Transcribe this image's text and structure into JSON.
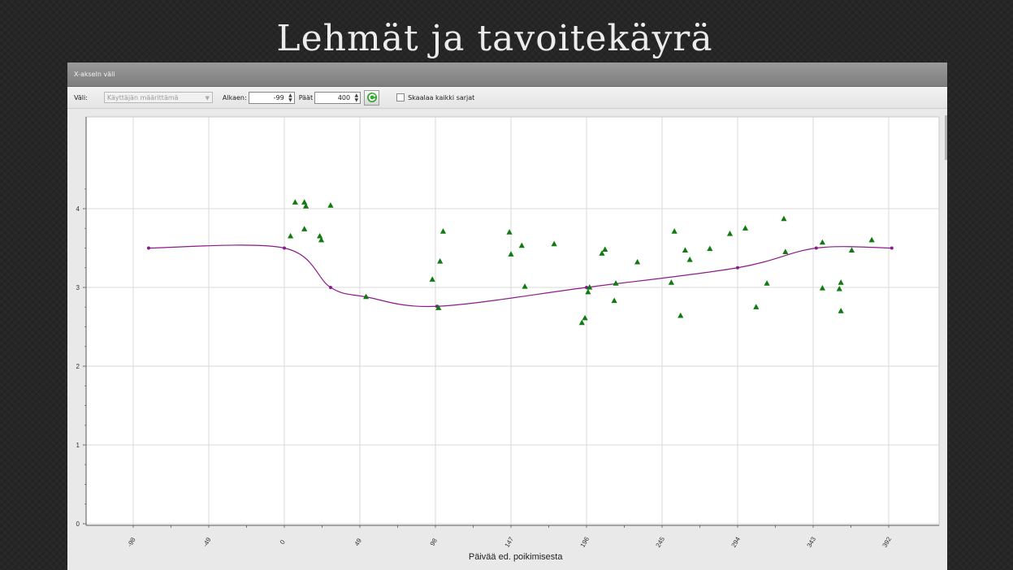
{
  "slide": {
    "title": "Lehmät ja tavoitekäyrä"
  },
  "window": {
    "title": "X-akseln väli"
  },
  "toolbar": {
    "vali_label": "Väli:",
    "vali_value": "Käyttäjän määrittämä",
    "alkaen_label": "Alkaen:",
    "alkaen_value": "-99",
    "paat_label": "Päät",
    "paat_value": "400",
    "refresh_icon": "refresh-icon",
    "scale_checkbox_checked": false,
    "scale_label": "Skaalaa kaikki sarjat"
  },
  "colors": {
    "curve": "#8b1a8b",
    "triangle": "#0f7a0f",
    "plot_bg": "#ffffff",
    "grid": "#dadada"
  },
  "chart_data": {
    "type": "scatter",
    "xlabel": "Päivää ed. poikimisesta",
    "ylabel": "",
    "xlim": [
      -99,
      400
    ],
    "ylim": [
      0,
      4.4
    ],
    "x_ticks": [
      -98,
      -49,
      0,
      49,
      98,
      147,
      196,
      245,
      294,
      343,
      392
    ],
    "y_ticks": [
      0,
      1,
      2,
      3,
      4
    ],
    "grid": true,
    "series": [
      {
        "marker": "circle-line",
        "points": [
          [
            -88,
            3.5
          ],
          [
            0,
            3.5
          ],
          [
            30,
            3.0
          ],
          [
            53,
            2.88
          ],
          [
            99,
            2.76
          ],
          [
            196,
            3.0
          ],
          [
            294,
            3.25
          ],
          [
            345,
            3.5
          ],
          [
            394,
            3.5
          ]
        ]
      },
      {
        "marker": "triangle",
        "points": [
          [
            4,
            3.65
          ],
          [
            7,
            4.08
          ],
          [
            13,
            3.74
          ],
          [
            13,
            4.08
          ],
          [
            14,
            4.03
          ],
          [
            23,
            3.65
          ],
          [
            24,
            3.6
          ],
          [
            30,
            4.04
          ],
          [
            53,
            2.88
          ],
          [
            96,
            3.1
          ],
          [
            101,
            3.33
          ],
          [
            103,
            3.71
          ],
          [
            100,
            2.74
          ],
          [
            146,
            3.7
          ],
          [
            147,
            3.42
          ],
          [
            154,
            3.53
          ],
          [
            156,
            3.01
          ],
          [
            175,
            3.55
          ],
          [
            193,
            2.55
          ],
          [
            195,
            2.61
          ],
          [
            197,
            2.94
          ],
          [
            198,
            3.0
          ],
          [
            206,
            3.43
          ],
          [
            208,
            3.48
          ],
          [
            214,
            2.83
          ],
          [
            215,
            3.05
          ],
          [
            229,
            3.32
          ],
          [
            251,
            3.06
          ],
          [
            253,
            3.71
          ],
          [
            257,
            2.64
          ],
          [
            260,
            3.47
          ],
          [
            263,
            3.35
          ],
          [
            276,
            3.49
          ],
          [
            289,
            3.68
          ],
          [
            299,
            3.75
          ],
          [
            306,
            2.75
          ],
          [
            313,
            3.05
          ],
          [
            324,
            3.87
          ],
          [
            325,
            3.45
          ],
          [
            349,
            3.57
          ],
          [
            349,
            2.99
          ],
          [
            360,
            2.98
          ],
          [
            361,
            3.06
          ],
          [
            361,
            2.7
          ],
          [
            368,
            3.47
          ],
          [
            381,
            3.6
          ]
        ]
      }
    ]
  }
}
